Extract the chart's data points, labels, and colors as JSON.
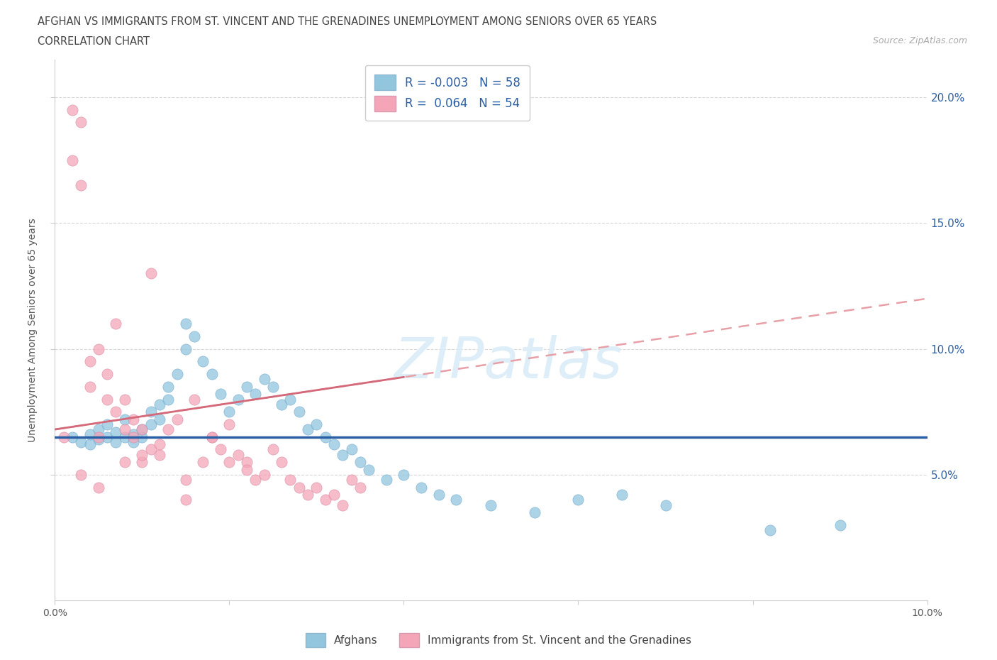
{
  "title_line1": "AFGHAN VS IMMIGRANTS FROM ST. VINCENT AND THE GRENADINES UNEMPLOYMENT AMONG SENIORS OVER 65 YEARS",
  "title_line2": "CORRELATION CHART",
  "source": "Source: ZipAtlas.com",
  "ylabel": "Unemployment Among Seniors over 65 years",
  "watermark": "ZIPatlas",
  "blue_R": -0.003,
  "blue_N": 58,
  "pink_R": 0.064,
  "pink_N": 54,
  "blue_color": "#92c5de",
  "pink_color": "#f4a6b8",
  "blue_line_color": "#2b5fa5",
  "pink_line_color": "#d4697a",
  "pink_dash_color": "#e8a0a8",
  "xlim": [
    0.0,
    0.1
  ],
  "ylim": [
    0.0,
    0.215
  ],
  "xticks": [
    0.0,
    0.02,
    0.04,
    0.06,
    0.08,
    0.1
  ],
  "yticks": [
    0.05,
    0.1,
    0.15,
    0.2
  ],
  "xtick_labels": [
    "0.0%",
    "",
    "",
    "",
    "",
    "10.0%"
  ],
  "ytick_labels": [
    "5.0%",
    "10.0%",
    "15.0%",
    "20.0%"
  ],
  "blue_trend_y0": 0.065,
  "blue_trend_y1": 0.065,
  "pink_trend_y0": 0.068,
  "pink_trend_y1": 0.12,
  "blue_scatter_x": [
    0.002,
    0.003,
    0.004,
    0.004,
    0.005,
    0.005,
    0.006,
    0.006,
    0.007,
    0.007,
    0.008,
    0.008,
    0.009,
    0.009,
    0.01,
    0.01,
    0.011,
    0.011,
    0.012,
    0.012,
    0.013,
    0.013,
    0.014,
    0.015,
    0.015,
    0.016,
    0.017,
    0.018,
    0.019,
    0.02,
    0.021,
    0.022,
    0.023,
    0.024,
    0.025,
    0.026,
    0.027,
    0.028,
    0.029,
    0.03,
    0.031,
    0.032,
    0.033,
    0.034,
    0.035,
    0.036,
    0.038,
    0.04,
    0.042,
    0.044,
    0.046,
    0.05,
    0.055,
    0.06,
    0.065,
    0.07,
    0.082,
    0.09
  ],
  "blue_scatter_y": [
    0.065,
    0.063,
    0.066,
    0.062,
    0.064,
    0.068,
    0.065,
    0.07,
    0.063,
    0.067,
    0.065,
    0.072,
    0.066,
    0.063,
    0.065,
    0.068,
    0.07,
    0.075,
    0.078,
    0.072,
    0.08,
    0.085,
    0.09,
    0.1,
    0.11,
    0.105,
    0.095,
    0.09,
    0.082,
    0.075,
    0.08,
    0.085,
    0.082,
    0.088,
    0.085,
    0.078,
    0.08,
    0.075,
    0.068,
    0.07,
    0.065,
    0.062,
    0.058,
    0.06,
    0.055,
    0.052,
    0.048,
    0.05,
    0.045,
    0.042,
    0.04,
    0.038,
    0.035,
    0.04,
    0.042,
    0.038,
    0.028,
    0.03
  ],
  "pink_scatter_x": [
    0.001,
    0.002,
    0.002,
    0.003,
    0.003,
    0.004,
    0.004,
    0.005,
    0.005,
    0.006,
    0.006,
    0.007,
    0.007,
    0.008,
    0.008,
    0.009,
    0.009,
    0.01,
    0.01,
    0.011,
    0.011,
    0.012,
    0.012,
    0.013,
    0.014,
    0.015,
    0.016,
    0.017,
    0.018,
    0.019,
    0.02,
    0.021,
    0.022,
    0.023,
    0.024,
    0.025,
    0.026,
    0.027,
    0.028,
    0.029,
    0.03,
    0.031,
    0.032,
    0.033,
    0.034,
    0.035,
    0.018,
    0.02,
    0.022,
    0.01,
    0.003,
    0.005,
    0.008,
    0.015
  ],
  "pink_scatter_y": [
    0.065,
    0.175,
    0.195,
    0.165,
    0.19,
    0.085,
    0.095,
    0.1,
    0.065,
    0.09,
    0.08,
    0.075,
    0.11,
    0.08,
    0.068,
    0.065,
    0.072,
    0.068,
    0.055,
    0.06,
    0.13,
    0.058,
    0.062,
    0.068,
    0.072,
    0.048,
    0.08,
    0.055,
    0.065,
    0.06,
    0.07,
    0.058,
    0.055,
    0.048,
    0.05,
    0.06,
    0.055,
    0.048,
    0.045,
    0.042,
    0.045,
    0.04,
    0.042,
    0.038,
    0.048,
    0.045,
    0.065,
    0.055,
    0.052,
    0.058,
    0.05,
    0.045,
    0.055,
    0.04
  ],
  "legend_label_blue": "Afghans",
  "legend_label_pink": "Immigrants from St. Vincent and the Grenadines",
  "grid_color": "#d8d8d8",
  "background_color": "#ffffff"
}
